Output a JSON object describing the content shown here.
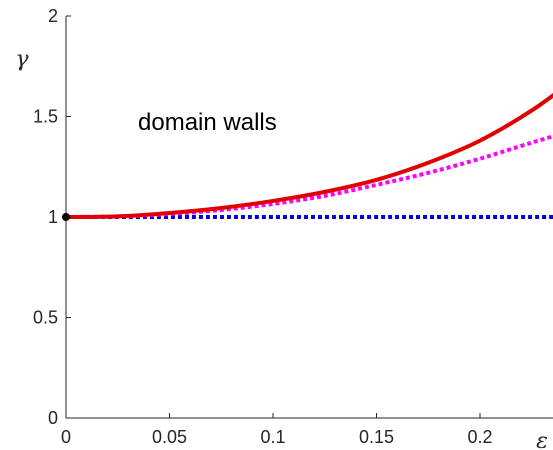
{
  "chart_data": {
    "type": "line",
    "title": "",
    "xlabel": "ε",
    "ylabel": "γ",
    "xlim": [
      0,
      0.245
    ],
    "ylim": [
      0,
      2
    ],
    "x_ticks": [
      0,
      0.05,
      0.1,
      0.15,
      0.2
    ],
    "x_tick_labels": [
      "0",
      "0.05",
      "0.1",
      "0.15",
      "0.2"
    ],
    "y_ticks": [
      0,
      0.5,
      1,
      1.5,
      2
    ],
    "y_tick_labels": [
      "0",
      "0.5",
      "1",
      "1.5",
      "2"
    ],
    "grid": false,
    "annotation": "domain walls",
    "series": [
      {
        "style": "solid",
        "color": "#e00000",
        "x": [
          0,
          0.025,
          0.05,
          0.075,
          0.1,
          0.125,
          0.15,
          0.175,
          0.2,
          0.225,
          0.245
        ],
        "y": [
          1.0,
          1.003,
          1.02,
          1.045,
          1.08,
          1.125,
          1.185,
          1.27,
          1.38,
          1.53,
          1.68
        ]
      },
      {
        "style": "dotted",
        "color": "#ff00ff",
        "x": [
          0,
          0.025,
          0.05,
          0.075,
          0.1,
          0.125,
          0.15,
          0.175,
          0.2,
          0.225,
          0.245
        ],
        "y": [
          1.0,
          1.003,
          1.015,
          1.035,
          1.065,
          1.105,
          1.16,
          1.22,
          1.29,
          1.37,
          1.43
        ]
      },
      {
        "style": "dotted",
        "color": "#0000e0",
        "x": [
          0,
          0.245
        ],
        "y": [
          1.0,
          1.0
        ]
      }
    ],
    "points": [
      {
        "x": 0,
        "y": 1,
        "color": "#000000"
      }
    ]
  }
}
